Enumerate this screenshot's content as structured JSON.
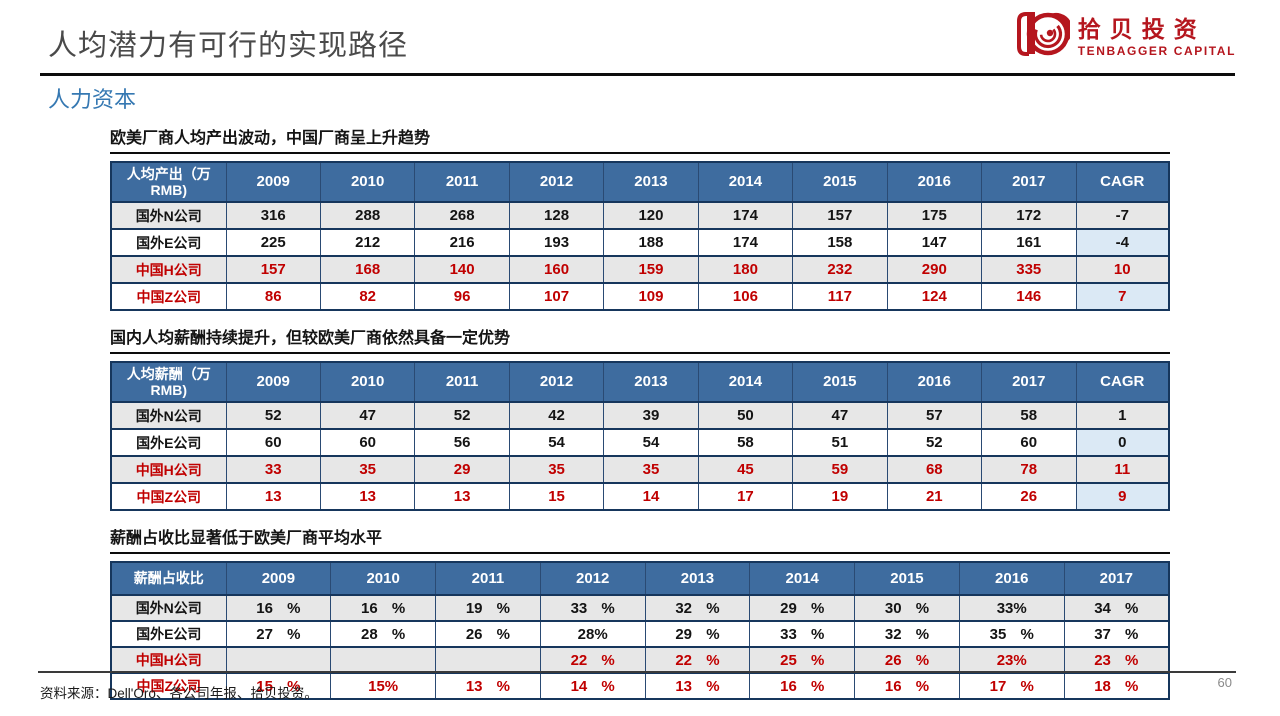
{
  "header": {
    "title": "人均潜力有可行的实现路径",
    "section": "人力资本",
    "logo": {
      "name_cn": "拾贝投资",
      "name_en": "TENBAGGER CAPITAL",
      "brand_red": "#B5161E"
    }
  },
  "colors": {
    "table_header_blue": "#3E6C9F",
    "cagr_column_bg": "#DBE9F5",
    "shaded_row_bg": "#E7E7E7",
    "china_row_red": "#C00000",
    "border_navy": "#16365C"
  },
  "tables": [
    {
      "caption": "欧美厂商人均产出波动，中国厂商呈上升趋势",
      "corner": "人均产出（万\nRMB)",
      "columns": [
        "2009",
        "2010",
        "2011",
        "2012",
        "2013",
        "2014",
        "2015",
        "2016",
        "2017",
        "CAGR"
      ],
      "has_cagr": true,
      "rows": [
        {
          "label": "国外N公司",
          "red": false,
          "values": [
            "316",
            "288",
            "268",
            "128",
            "120",
            "174",
            "157",
            "175",
            "172",
            "-7"
          ]
        },
        {
          "label": "国外E公司",
          "red": false,
          "values": [
            "225",
            "212",
            "216",
            "193",
            "188",
            "174",
            "158",
            "147",
            "161",
            "-4"
          ]
        },
        {
          "label": "中国H公司",
          "red": true,
          "values": [
            "157",
            "168",
            "140",
            "160",
            "159",
            "180",
            "232",
            "290",
            "335",
            "10"
          ]
        },
        {
          "label": "中国Z公司",
          "red": true,
          "values": [
            "86",
            "82",
            "96",
            "107",
            "109",
            "106",
            "117",
            "124",
            "146",
            "7"
          ]
        }
      ]
    },
    {
      "caption": "国内人均薪酬持续提升，但较欧美厂商依然具备一定优势",
      "corner": "人均薪酬（万\nRMB)",
      "columns": [
        "2009",
        "2010",
        "2011",
        "2012",
        "2013",
        "2014",
        "2015",
        "2016",
        "2017",
        "CAGR"
      ],
      "has_cagr": true,
      "rows": [
        {
          "label": "国外N公司",
          "red": false,
          "values": [
            "52",
            "47",
            "52",
            "42",
            "39",
            "50",
            "47",
            "57",
            "58",
            "1"
          ]
        },
        {
          "label": "国外E公司",
          "red": false,
          "values": [
            "60",
            "60",
            "56",
            "54",
            "54",
            "58",
            "51",
            "52",
            "60",
            "0"
          ]
        },
        {
          "label": "中国H公司",
          "red": true,
          "values": [
            "33",
            "35",
            "29",
            "35",
            "35",
            "45",
            "59",
            "68",
            "78",
            "11"
          ]
        },
        {
          "label": "中国Z公司",
          "red": true,
          "values": [
            "13",
            "13",
            "13",
            "15",
            "14",
            "17",
            "19",
            "21",
            "26",
            "9"
          ]
        }
      ]
    },
    {
      "caption": "薪酬占收比显著低于欧美厂商平均水平",
      "corner": "薪酬占收比",
      "columns": [
        "2009",
        "2010",
        "2011",
        "2012",
        "2013",
        "2014",
        "2015",
        "2016",
        "2017"
      ],
      "has_cagr": false,
      "rows": [
        {
          "label": "国外N公司",
          "red": false,
          "values": [
            "16 %",
            "16 %",
            "19 %",
            "33 %",
            "32 %",
            "29 %",
            "30 %",
            "33%",
            "34 %"
          ]
        },
        {
          "label": "国外E公司",
          "red": false,
          "values": [
            "27 %",
            "28 %",
            "26 %",
            "28%",
            "29 %",
            "33 %",
            "32 %",
            "35 %",
            "37 %"
          ]
        },
        {
          "label": "中国H公司",
          "red": true,
          "values": [
            "",
            "",
            "",
            "22 %",
            "22 %",
            "25 %",
            "26 %",
            "23%",
            "23 %"
          ]
        },
        {
          "label": "中国Z公司",
          "red": true,
          "values": [
            "15 %",
            "15%",
            "13 %",
            "14 %",
            "13 %",
            "16 %",
            "16 %",
            "17 %",
            "18 %"
          ]
        }
      ]
    }
  ],
  "footer": {
    "source": "资料来源：Dell'Oro、各公司年报、拾贝投资。",
    "page": "60"
  }
}
